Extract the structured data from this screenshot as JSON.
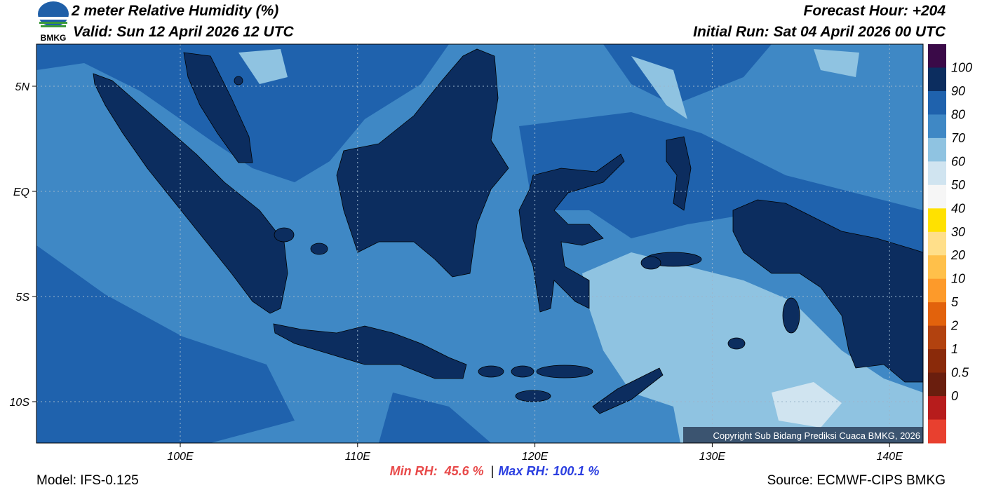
{
  "header": {
    "logo_text": "BMKG",
    "title": "2 meter Relative Humidity (%)",
    "valid": "Valid: Sun 12 April 2026 12 UTC",
    "forecast_hour": "Forecast Hour: +204",
    "initial_run": "Initial Run: Sat 04 April 2026 00 UTC"
  },
  "map": {
    "lat_labels": [
      "5N",
      "EQ",
      "5S",
      "10S"
    ],
    "lon_labels": [
      "100E",
      "110E",
      "120E",
      "130E",
      "140E"
    ],
    "copyright": "Copyright Sub Bidang Prediksi Cuaca BMKG, 2026"
  },
  "colorbar": {
    "colors": [
      "#3a0a48",
      "#0c2d5f",
      "#1f62ad",
      "#3f88c5",
      "#8fc3e1",
      "#d0e4f0",
      "#f6f6f6",
      "#ffe100",
      "#ffdf8a",
      "#ffc04a",
      "#fd9a2a",
      "#e2620c",
      "#b2420f",
      "#8a2a0a",
      "#6a1e0e",
      "#b71c1c",
      "#e8402f"
    ],
    "labels": [
      "100",
      "90",
      "80",
      "70",
      "60",
      "50",
      "40",
      "30",
      "20",
      "10",
      "5",
      "2",
      "1",
      "0.5",
      "0"
    ]
  },
  "footer": {
    "model": "Model: IFS-0.125",
    "min_label": "Min RH:",
    "min_value": "45.6 %",
    "separator": "|",
    "max_label": "Max RH:",
    "max_value": "100.1 %",
    "source": "Source: ECMWF-CIPS BMKG"
  }
}
